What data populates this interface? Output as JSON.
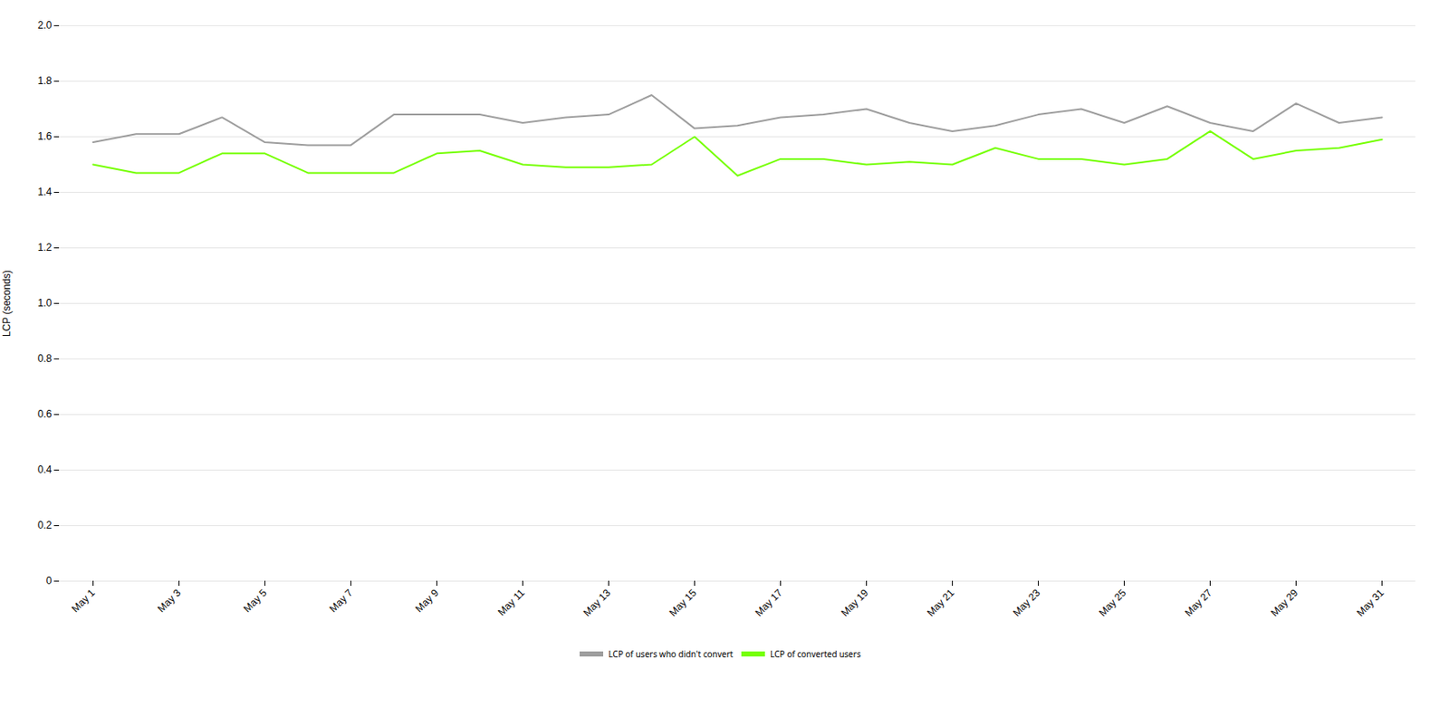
{
  "chart_data": {
    "type": "line",
    "ylabel": "LCP (seconds)",
    "categories": [
      "May 1",
      null,
      "May 3",
      null,
      "May 5",
      null,
      "May 7",
      null,
      "May 9",
      null,
      "May 11",
      null,
      "May 13",
      null,
      "May 15",
      null,
      "May 17",
      null,
      "May 19",
      null,
      "May 21",
      null,
      "May 23",
      null,
      "May 25",
      null,
      "May 27",
      null,
      "May 29",
      null,
      "May 31"
    ],
    "series": [
      {
        "name": "LCP of users who didn't convert",
        "color": "#9e9e9e",
        "values": [
          1.58,
          1.61,
          1.61,
          1.67,
          1.58,
          1.57,
          1.57,
          1.68,
          1.68,
          1.68,
          1.65,
          1.67,
          1.68,
          1.75,
          1.63,
          1.64,
          1.67,
          1.68,
          1.7,
          1.65,
          1.62,
          1.64,
          1.68,
          1.7,
          1.65,
          1.71,
          1.65,
          1.62,
          1.72,
          1.65,
          1.67
        ]
      },
      {
        "name": "LCP of converted users",
        "color": "#76ff03",
        "values": [
          1.5,
          1.47,
          1.47,
          1.54,
          1.54,
          1.47,
          1.47,
          1.47,
          1.54,
          1.55,
          1.5,
          1.49,
          1.49,
          1.5,
          1.6,
          1.46,
          1.52,
          1.52,
          1.5,
          1.51,
          1.5,
          1.56,
          1.52,
          1.52,
          1.5,
          1.52,
          1.62,
          1.52,
          1.55,
          1.56,
          1.59
        ]
      }
    ],
    "ylim": [
      0,
      2.0
    ],
    "yticks": [
      0,
      0.2,
      0.4,
      0.6,
      0.8,
      {
        "value": 1.0,
        "label": "1.0"
      },
      1.2,
      1.4,
      1.6,
      1.8,
      {
        "value": 2.0,
        "label": "2.0"
      }
    ],
    "grid": "y",
    "legend": "bottom"
  }
}
